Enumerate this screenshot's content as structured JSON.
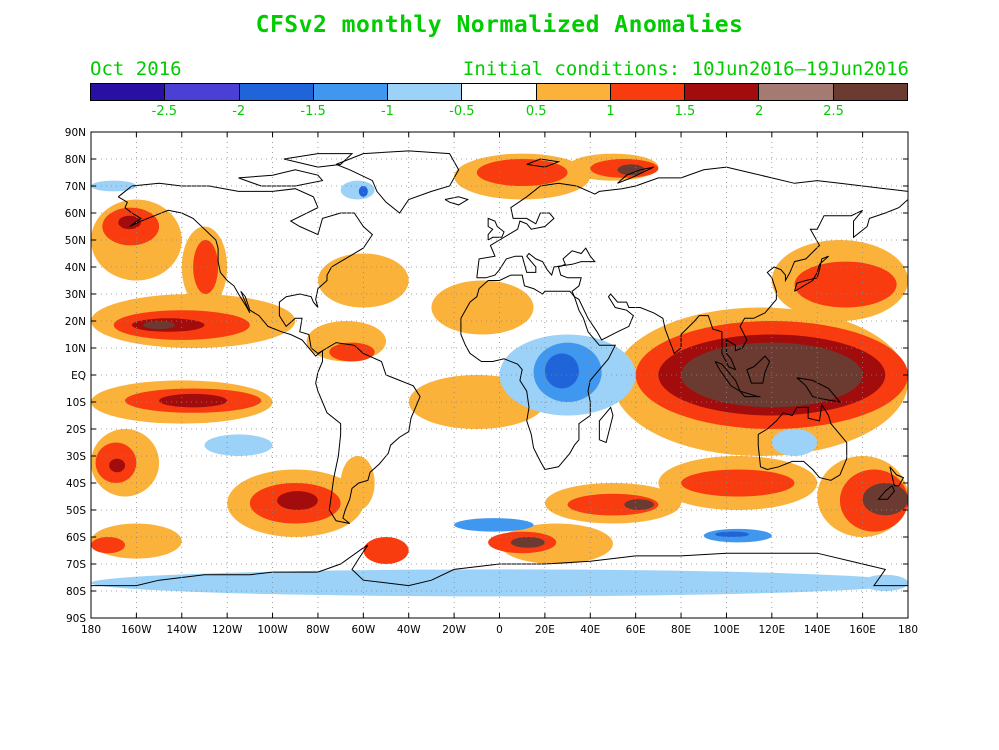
{
  "title": "CFSv2 monthly Normalized Anomalies",
  "subtitle_left": "Oct 2016",
  "subtitle_right": "Initial conditions: 10Jun2016–19Jun2016",
  "colorbar": {
    "colors": [
      "#2a0fa3",
      "#4b3fd6",
      "#1f64d9",
      "#3f97f0",
      "#9cd2f7",
      "#ffffff",
      "#fbb23b",
      "#f83c0f",
      "#a30c0c",
      "#a37b72",
      "#6b3a30"
    ],
    "labels": [
      "-2.5",
      "-2",
      "-1.5",
      "-1",
      "-0.5",
      "0.5",
      "1",
      "1.5",
      "2",
      "2.5"
    ],
    "label_color": "#00cc00"
  },
  "map": {
    "projection": "equirectangular",
    "lon_range": [
      -180,
      180
    ],
    "lat_range": [
      -90,
      90
    ],
    "lat_labels": [
      "90N",
      "80N",
      "70N",
      "60N",
      "50N",
      "40N",
      "30N",
      "20N",
      "10N",
      "EQ",
      "10S",
      "20S",
      "30S",
      "40S",
      "50S",
      "60S",
      "70S",
      "80S",
      "90S"
    ],
    "lon_labels": [
      "180",
      "160W",
      "140W",
      "120W",
      "100W",
      "80W",
      "60W",
      "40W",
      "20W",
      "0",
      "20E",
      "40E",
      "60E",
      "80E",
      "100E",
      "120E",
      "140E",
      "160E",
      "180"
    ],
    "grid": "dotted",
    "coastlines": true,
    "anomaly_regions": [
      {
        "cat": "pos1",
        "lon": [
          -180,
          -90
        ],
        "lat": [
          10,
          30
        ]
      },
      {
        "cat": "pos2",
        "lon": [
          -170,
          -110
        ],
        "lat": [
          13,
          24
        ]
      },
      {
        "cat": "pos3",
        "lon": [
          -162,
          -130
        ],
        "lat": [
          16,
          21
        ]
      },
      {
        "cat": "pos4",
        "lon": [
          -157,
          -143
        ],
        "lat": [
          17,
          20
        ]
      },
      {
        "cat": "pos1",
        "lon": [
          -180,
          -100
        ],
        "lat": [
          -18,
          -2
        ]
      },
      {
        "cat": "pos2",
        "lon": [
          -165,
          -105
        ],
        "lat": [
          -14,
          -5
        ]
      },
      {
        "cat": "pos3",
        "lon": [
          -150,
          -120
        ],
        "lat": [
          -12,
          -7
        ]
      },
      {
        "cat": "pos1",
        "lon": [
          -180,
          -150
        ],
        "lat": [
          -45,
          -20
        ]
      },
      {
        "cat": "pos2",
        "lon": [
          -178,
          -160
        ],
        "lat": [
          -40,
          -25
        ]
      },
      {
        "cat": "pos3",
        "lon": [
          -172,
          -165
        ],
        "lat": [
          -36,
          -31
        ]
      },
      {
        "cat": "pos1",
        "lon": [
          -180,
          -140
        ],
        "lat": [
          -68,
          -55
        ]
      },
      {
        "cat": "pos2",
        "lon": [
          -180,
          -165
        ],
        "lat": [
          -66,
          -60
        ]
      },
      {
        "cat": "pos1",
        "lon": [
          -120,
          -60
        ],
        "lat": [
          -60,
          -35
        ]
      },
      {
        "cat": "pos2",
        "lon": [
          -110,
          -70
        ],
        "lat": [
          -55,
          -40
        ]
      },
      {
        "cat": "pos3",
        "lon": [
          -98,
          -80
        ],
        "lat": [
          -50,
          -43
        ]
      },
      {
        "cat": "pos1",
        "lon": [
          -180,
          -140
        ],
        "lat": [
          35,
          65
        ]
      },
      {
        "cat": "pos2",
        "lon": [
          -175,
          -150
        ],
        "lat": [
          48,
          62
        ]
      },
      {
        "cat": "pos3",
        "lon": [
          -168,
          -158
        ],
        "lat": [
          54,
          59
        ]
      },
      {
        "cat": "pos1",
        "lon": [
          -140,
          -120
        ],
        "lat": [
          25,
          55
        ]
      },
      {
        "cat": "pos2",
        "lon": [
          -135,
          -124
        ],
        "lat": [
          30,
          50
        ]
      },
      {
        "cat": "pos1",
        "lon": [
          -85,
          -50
        ],
        "lat": [
          5,
          20
        ]
      },
      {
        "cat": "pos2",
        "lon": [
          -75,
          -55
        ],
        "lat": [
          5,
          12
        ]
      },
      {
        "cat": "pos1",
        "lon": [
          -80,
          -40
        ],
        "lat": [
          25,
          45
        ]
      },
      {
        "cat": "pos1",
        "lon": [
          -70,
          -55
        ],
        "lat": [
          -50,
          -30
        ]
      },
      {
        "cat": "pos2",
        "lon": [
          -60,
          -40
        ],
        "lat": [
          -70,
          -60
        ]
      },
      {
        "cat": "pos1",
        "lon": [
          -40,
          20
        ],
        "lat": [
          -20,
          0
        ]
      },
      {
        "cat": "pos1",
        "lon": [
          -30,
          15
        ],
        "lat": [
          15,
          35
        ]
      },
      {
        "cat": "pos1",
        "lon": [
          -20,
          40
        ],
        "lat": [
          65,
          82
        ]
      },
      {
        "cat": "pos2",
        "lon": [
          -10,
          30
        ],
        "lat": [
          70,
          80
        ]
      },
      {
        "cat": "pos1",
        "lon": [
          30,
          70
        ],
        "lat": [
          72,
          82
        ]
      },
      {
        "cat": "pos2",
        "lon": [
          40,
          70
        ],
        "lat": [
          73,
          80
        ]
      },
      {
        "cat": "pos4",
        "lon": [
          52,
          64
        ],
        "lat": [
          74,
          78
        ]
      },
      {
        "cat": "pos1",
        "lon": [
          0,
          50
        ],
        "lat": [
          -70,
          -55
        ]
      },
      {
        "cat": "pos2",
        "lon": [
          -5,
          25
        ],
        "lat": [
          -66,
          -58
        ]
      },
      {
        "cat": "pos4",
        "lon": [
          5,
          20
        ],
        "lat": [
          -64,
          -60
        ]
      },
      {
        "cat": "pos1",
        "lon": [
          20,
          80
        ],
        "lat": [
          -55,
          -40
        ]
      },
      {
        "cat": "pos2",
        "lon": [
          30,
          70
        ],
        "lat": [
          -52,
          -44
        ]
      },
      {
        "cat": "pos4",
        "lon": [
          55,
          68
        ],
        "lat": [
          -50,
          -46
        ]
      },
      {
        "cat": "pos1",
        "lon": [
          50,
          180
        ],
        "lat": [
          -30,
          25
        ]
      },
      {
        "cat": "pos2",
        "lon": [
          60,
          180
        ],
        "lat": [
          -20,
          20
        ]
      },
      {
        "cat": "pos3",
        "lon": [
          70,
          170
        ],
        "lat": [
          -15,
          15
        ]
      },
      {
        "cat": "pos4",
        "lon": [
          80,
          160
        ],
        "lat": [
          -12,
          12
        ]
      },
      {
        "cat": "pos1",
        "lon": [
          120,
          180
        ],
        "lat": [
          20,
          50
        ]
      },
      {
        "cat": "pos2",
        "lon": [
          130,
          175
        ],
        "lat": [
          25,
          42
        ]
      },
      {
        "cat": "pos1",
        "lon": [
          140,
          180
        ],
        "lat": [
          -60,
          -30
        ]
      },
      {
        "cat": "pos2",
        "lon": [
          150,
          180
        ],
        "lat": [
          -58,
          -35
        ]
      },
      {
        "cat": "pos4",
        "lon": [
          160,
          180
        ],
        "lat": [
          -52,
          -40
        ]
      },
      {
        "cat": "pos1",
        "lon": [
          70,
          140
        ],
        "lat": [
          -50,
          -30
        ]
      },
      {
        "cat": "pos2",
        "lon": [
          80,
          130
        ],
        "lat": [
          -45,
          -35
        ]
      },
      {
        "cat": "neg1",
        "lon": [
          0,
          60
        ],
        "lat": [
          -15,
          15
        ]
      },
      {
        "cat": "neg2",
        "lon": [
          15,
          45
        ],
        "lat": [
          -10,
          12
        ]
      },
      {
        "cat": "neg3",
        "lon": [
          20,
          35
        ],
        "lat": [
          -5,
          8
        ]
      },
      {
        "cat": "neg1",
        "lon": [
          -180,
          180
        ],
        "lat": [
          -82,
          -72
        ]
      },
      {
        "cat": "neg2",
        "lon": [
          90,
          120
        ],
        "lat": [
          -62,
          -57
        ]
      },
      {
        "cat": "neg3",
        "lon": [
          95,
          110
        ],
        "lat": [
          -60,
          -58
        ]
      },
      {
        "cat": "neg2",
        "lon": [
          -20,
          15
        ],
        "lat": [
          -58,
          -53
        ]
      },
      {
        "cat": "neg1",
        "lon": [
          -130,
          -100
        ],
        "lat": [
          -30,
          -22
        ]
      },
      {
        "cat": "neg1",
        "lon": [
          -70,
          -55
        ],
        "lat": [
          65,
          72
        ]
      },
      {
        "cat": "neg3",
        "lon": [
          -62,
          -58
        ],
        "lat": [
          66,
          70
        ]
      },
      {
        "cat": "neg1",
        "lon": [
          -180,
          -160
        ],
        "lat": [
          68,
          72
        ]
      },
      {
        "cat": "neg1",
        "lon": [
          160,
          180
        ],
        "lat": [
          -80,
          -74
        ]
      },
      {
        "cat": "neg1",
        "lon": [
          120,
          140
        ],
        "lat": [
          -30,
          -20
        ]
      }
    ]
  }
}
